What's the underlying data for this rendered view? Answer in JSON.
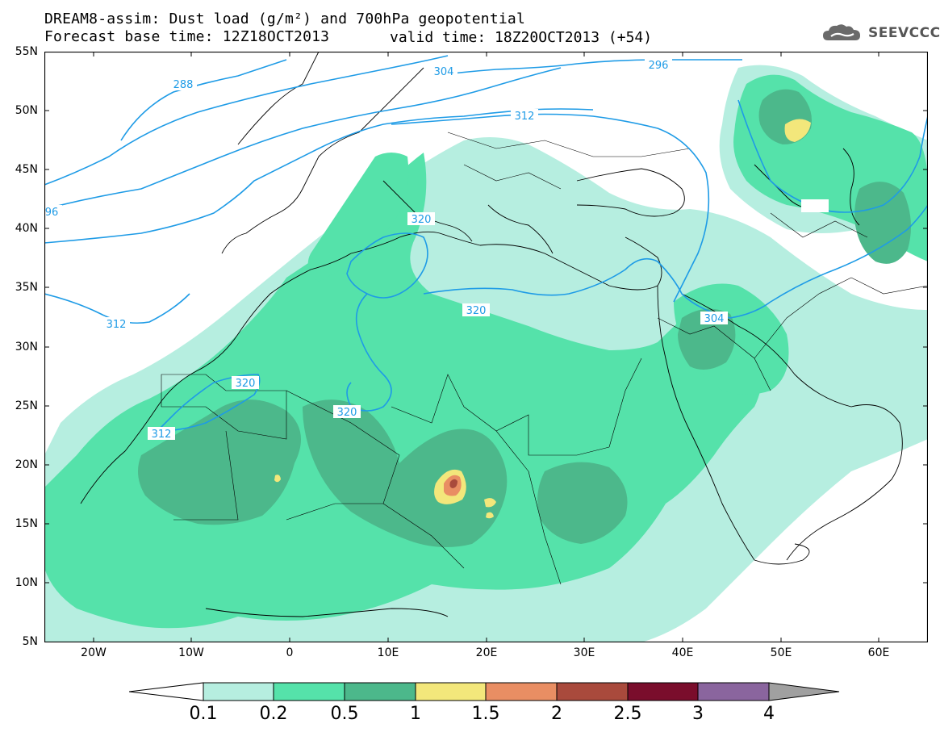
{
  "title": {
    "line1": "DREAM8-assim: Dust load (g/m²) and 700hPa geopotential",
    "line2": "Forecast base time: 12Z18OCT2013",
    "valid": "valid time: 18Z20OCT2013 (+54)"
  },
  "logo": {
    "text": "SEEVCCC",
    "icon": "cloud-icon"
  },
  "axes": {
    "lat_labels": [
      "55N",
      "50N",
      "45N",
      "40N",
      "35N",
      "30N",
      "25N",
      "20N",
      "15N",
      "10N",
      "5N"
    ],
    "lon_labels": [
      "20W",
      "10W",
      "0",
      "10E",
      "20E",
      "30E",
      "40E",
      "50E",
      "60E"
    ],
    "lat_range": [
      5,
      55
    ],
    "lon_range": [
      -25,
      65
    ]
  },
  "contours": {
    "labels": [
      "288",
      "304",
      "296",
      "312",
      "96",
      "320",
      "320",
      "312",
      "320",
      "320",
      "312",
      "304"
    ]
  },
  "colorbar": {
    "labels": [
      "0.1",
      "0.2",
      "0.5",
      "1",
      "1.5",
      "2",
      "2.5",
      "3",
      "4"
    ],
    "colors": [
      "#ffffff",
      "#b6eee0",
      "#55e2aa",
      "#4cb88b",
      "#f3e77b",
      "#e98e63",
      "#a94a3c",
      "#7a0d2c",
      "#8a659e",
      "#a0a0a0"
    ]
  },
  "colors": {
    "contour": "#1e9be6",
    "dust_low": "#b6eee0",
    "dust_mid": "#55e2aa",
    "dust_high": "#4cb88b"
  }
}
